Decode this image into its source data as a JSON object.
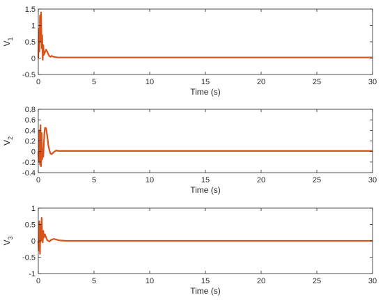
{
  "chart_data": [
    {
      "type": "line",
      "xlabel": "Time (s)",
      "ylabel": "V",
      "ylabel_subscript": "1",
      "xlim": [
        0,
        30
      ],
      "ylim": [
        -0.5,
        1.5
      ],
      "xticks": [
        0,
        5,
        10,
        15,
        20,
        25,
        30
      ],
      "yticks": [
        -0.5,
        0,
        0.5,
        1,
        1.5
      ],
      "ytick_labels": [
        "-0.5",
        "0",
        "0.5",
        "1",
        "1.5"
      ],
      "grid": false,
      "series_color": "#D95319",
      "x": [
        0,
        0.05,
        0.1,
        0.15,
        0.2,
        0.25,
        0.3,
        0.35,
        0.4,
        0.45,
        0.5,
        0.6,
        0.7,
        0.8,
        0.9,
        1.0,
        1.1,
        1.2,
        1.3,
        1.5,
        1.8,
        2.0,
        3.0,
        30
      ],
      "values": [
        0,
        0.9,
        0.2,
        1.3,
        0.5,
        1.4,
        0.3,
        0.7,
        -0.05,
        0.4,
        0.1,
        0.18,
        0.26,
        0.2,
        0.12,
        0.06,
        0.04,
        0.07,
        0.05,
        0.03,
        0.02,
        0.02,
        0.02,
        0.02
      ]
    },
    {
      "type": "line",
      "xlabel": "Time (s)",
      "ylabel": "V",
      "ylabel_subscript": "2",
      "xlim": [
        0,
        30
      ],
      "ylim": [
        -0.4,
        0.8
      ],
      "xticks": [
        0,
        5,
        10,
        15,
        20,
        25,
        30
      ],
      "yticks": [
        -0.4,
        -0.2,
        0,
        0.2,
        0.4,
        0.6,
        0.8
      ],
      "ytick_labels": [
        "-0.4",
        "-0.2",
        "0",
        "0.2",
        "0.4",
        "0.6",
        "0.8"
      ],
      "grid": false,
      "series_color": "#D95319",
      "x": [
        0,
        0.05,
        0.1,
        0.15,
        0.2,
        0.25,
        0.3,
        0.35,
        0.4,
        0.45,
        0.5,
        0.55,
        0.6,
        0.7,
        0.8,
        0.9,
        1.0,
        1.1,
        1.2,
        1.4,
        1.6,
        1.8,
        2.0,
        3.0,
        30
      ],
      "values": [
        0,
        -0.2,
        0.4,
        -0.25,
        0.5,
        -0.28,
        0.35,
        -0.15,
        0.05,
        -0.1,
        0.15,
        0.35,
        0.45,
        0.44,
        0.3,
        0.12,
        0.02,
        -0.04,
        -0.05,
        -0.01,
        0.02,
        0.01,
        0.01,
        0.01,
        0.01
      ]
    },
    {
      "type": "line",
      "xlabel": "Time (s)",
      "ylabel": "V",
      "ylabel_subscript": "3",
      "xlim": [
        0,
        30
      ],
      "ylim": [
        -1,
        1
      ],
      "xticks": [
        0,
        5,
        10,
        15,
        20,
        25,
        30
      ],
      "yticks": [
        -1,
        -0.5,
        0,
        0.5,
        1
      ],
      "ytick_labels": [
        "-1",
        "-0.5",
        "0",
        "0.5",
        "1"
      ],
      "grid": false,
      "series_color": "#D95319",
      "x": [
        0,
        0.05,
        0.1,
        0.15,
        0.2,
        0.25,
        0.3,
        0.35,
        0.4,
        0.45,
        0.5,
        0.6,
        0.7,
        0.8,
        0.9,
        1.0,
        1.2,
        1.4,
        1.6,
        1.8,
        2.0,
        2.5,
        30
      ],
      "values": [
        0,
        -0.3,
        0.6,
        -0.4,
        0.5,
        0.0,
        0.7,
        0.2,
        -0.05,
        0.3,
        0.1,
        0.2,
        0.1,
        0.02,
        0.0,
        -0.02,
        0.04,
        0.06,
        0.04,
        0.02,
        0.01,
        0.0,
        0.0
      ]
    }
  ]
}
